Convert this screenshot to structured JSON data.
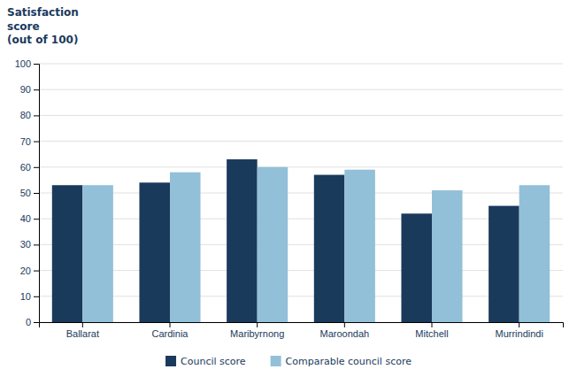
{
  "chart_data": {
    "type": "bar",
    "ylabel": "Satisfaction\nscore\n(out of 100)",
    "categories": [
      "Ballarat",
      "Cardinia",
      "Maribyrnong",
      "Maroondah",
      "Mitchell",
      "Murrindindi"
    ],
    "series": [
      {
        "name": "Council score",
        "color": "#1a3a5c",
        "values": [
          53,
          54,
          63,
          57,
          42,
          45
        ]
      },
      {
        "name": "Comparable council score",
        "color": "#92c0d8",
        "values": [
          53,
          58,
          60,
          59,
          51,
          53
        ]
      }
    ],
    "ylim": [
      0,
      100
    ],
    "yticks": [
      0,
      10,
      20,
      30,
      40,
      50,
      60,
      70,
      80,
      90,
      100
    ],
    "grid": true,
    "legend": "bottom"
  }
}
